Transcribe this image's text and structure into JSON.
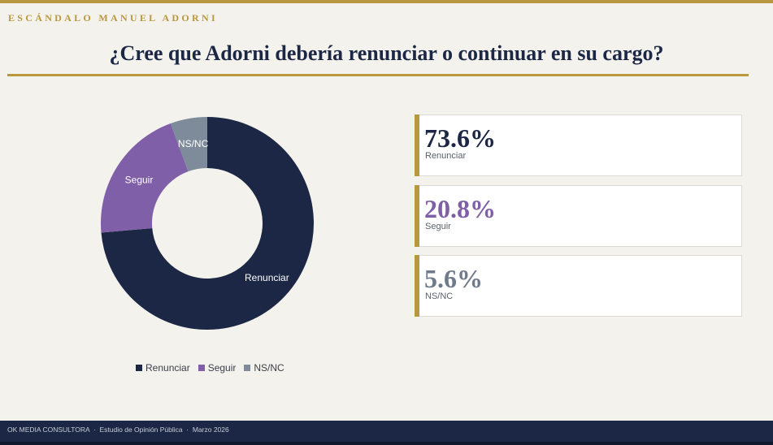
{
  "header": {
    "eyebrow": "ESCÁNDALO MANUEL ADORNI",
    "title": "¿Cree que Adorni debería renunciar o continuar en su cargo?"
  },
  "colors": {
    "accent": "#b8973f",
    "renunciar": "#1b2744",
    "seguir": "#7f5fa8",
    "nsnc": "#7e8b9b"
  },
  "chart_data": {
    "type": "pie",
    "donut": true,
    "categories": [
      "Renunciar",
      "Seguir",
      "NS/NC"
    ],
    "values": [
      73.6,
      20.8,
      5.6
    ],
    "colors": [
      "#1b2744",
      "#7f5fa8",
      "#7e8b9b"
    ],
    "legend_position": "bottom",
    "title": ""
  },
  "legend": {
    "items": [
      {
        "label": "Renunciar"
      },
      {
        "label": "Seguir"
      },
      {
        "label": "NS/NC"
      }
    ]
  },
  "cards": [
    {
      "value": "73.6%",
      "label": "Renunciar"
    },
    {
      "value": "20.8%",
      "label": "Seguir"
    },
    {
      "value": "5.6%",
      "label": "NS/NC"
    }
  ],
  "footer": {
    "text": "OK MEDIA CONSULTORA  ·  Estudio de Opinión Pública  ·  Marzo 2026"
  }
}
